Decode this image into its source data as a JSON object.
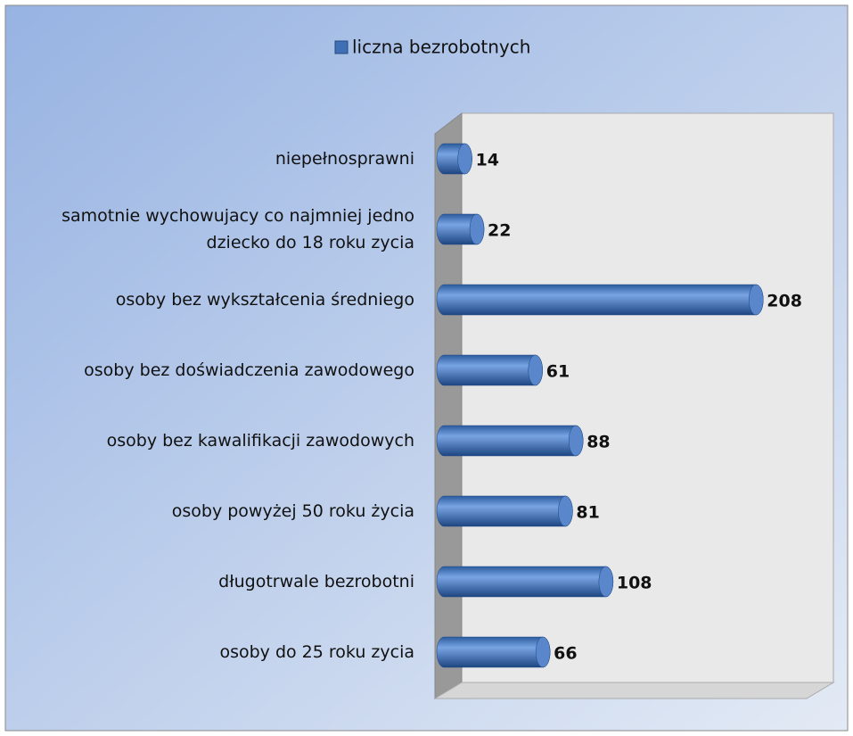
{
  "chart_data": {
    "type": "bar",
    "orientation": "horizontal",
    "legend": "top",
    "series": [
      {
        "name": "liczna bezrobotnych",
        "color": "#3f6fb5",
        "values": [
          14,
          22,
          208,
          61,
          88,
          81,
          108,
          66
        ]
      }
    ],
    "categories": [
      "niepełnosprawni",
      "samotnie wychowujacy co najmniej jedno dziecko do 18 roku zycia",
      "osoby bez wykształcenia średniego",
      "osoby bez doświadczenia zawodowego",
      "osoby bez kawalifikacji zawodowych",
      "osoby powyżej 50 roku życia",
      "długotrwale bezrobotni",
      "osoby do 25 roku zycia"
    ],
    "xlim": [
      0,
      250
    ]
  }
}
